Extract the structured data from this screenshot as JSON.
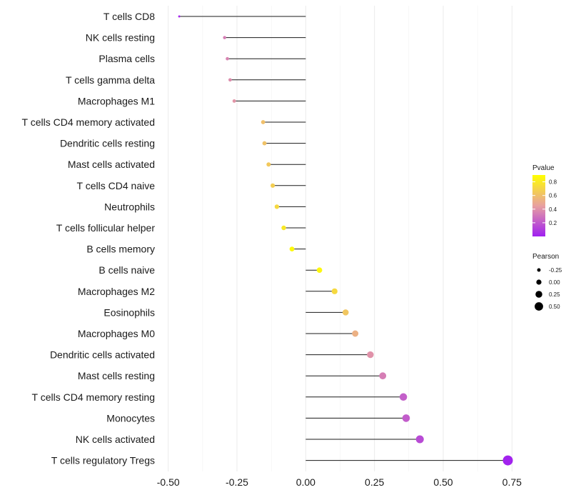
{
  "chart_data": {
    "type": "lollipop",
    "title": "",
    "xlabel": "",
    "ylabel": "",
    "xlim": [
      -0.52,
      0.77
    ],
    "x_ticks": [
      -0.5,
      -0.25,
      0.0,
      0.25,
      0.5,
      0.75
    ],
    "x_tick_labels": [
      "-0.50",
      "-0.25",
      "0.00",
      "0.25",
      "0.50",
      "0.75"
    ],
    "grid": true,
    "categories": [
      "T cells CD8",
      "NK cells resting",
      "Plasma cells",
      "T cells gamma delta",
      "Macrophages M1",
      "T cells CD4 memory activated",
      "Dendritic cells resting",
      "Mast cells activated",
      "T cells CD4 naive",
      "Neutrophils",
      "T cells follicular helper",
      "B cells memory",
      "B cells naive",
      "Macrophages M2",
      "Eosinophils",
      "Macrophages M0",
      "Dendritic cells activated",
      "Mast cells resting",
      "T cells CD4 memory resting",
      "Monocytes",
      "NK cells activated",
      "T cells regulatory  Tregs"
    ],
    "pearson": [
      -0.46,
      -0.295,
      -0.285,
      -0.275,
      -0.26,
      -0.155,
      -0.15,
      -0.135,
      -0.12,
      -0.105,
      -0.08,
      -0.05,
      0.05,
      0.105,
      0.145,
      0.18,
      0.235,
      0.28,
      0.355,
      0.365,
      0.415,
      0.735
    ],
    "pvalue": [
      0.03,
      0.33,
      0.35,
      0.38,
      0.41,
      0.6,
      0.61,
      0.64,
      0.67,
      0.72,
      0.79,
      0.87,
      0.86,
      0.72,
      0.63,
      0.53,
      0.4,
      0.33,
      0.22,
      0.21,
      0.15,
      0.01
    ],
    "legend": {
      "color": {
        "title": "Pvalue",
        "ticks": [
          0.2,
          0.4,
          0.6,
          0.8
        ],
        "tick_labels": [
          "0.2",
          "0.4",
          "0.6",
          "0.8"
        ],
        "range": [
          0.0,
          0.9
        ],
        "low_color": "#a020f0",
        "mid_color": "#e8a0a0",
        "high_color": "#ffff00"
      },
      "size": {
        "title": "Pearson",
        "values": [
          -0.25,
          0.0,
          0.25,
          0.5
        ],
        "labels": [
          "-0.25",
          "0.00",
          "0.25",
          "0.50"
        ]
      },
      "placement": "right"
    }
  }
}
